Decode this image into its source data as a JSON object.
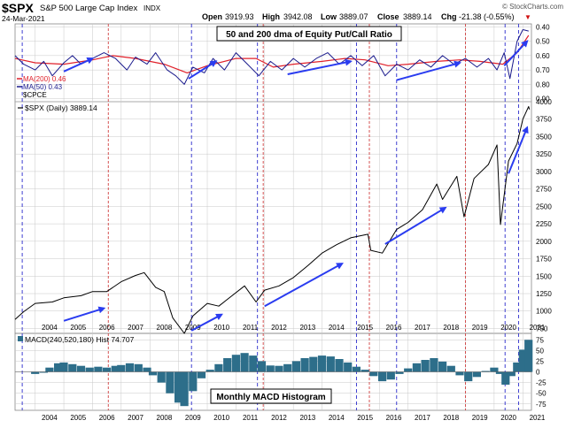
{
  "header": {
    "symbol": "$SPX",
    "name": "S&P 500 Large Cap Index",
    "exchange": "INDX",
    "date": "24-Mar-2021",
    "brand": "© StockCharts.com",
    "ohlc": {
      "open_label": "Open",
      "open": "3919.93",
      "high_label": "High",
      "high": "3942.08",
      "low_label": "Low",
      "low": "3889.07",
      "close_label": "Close",
      "close": "3889.14",
      "chg_label": "Chg",
      "chg": "-21.38 (-0.55%)",
      "down_marker": "▼"
    }
  },
  "colors": {
    "price": "#000000",
    "ma200": "#e0202a",
    "ma50": "#1a1a8c",
    "hist": "#2d6e8a",
    "arrow": "#2a3cf0",
    "vline_blue": "#2a2acc",
    "vline_red": "#d04040",
    "grid": "#c8c8c8"
  },
  "top_panel": {
    "annotation": "50 and 200 dma of Equity Put/Call Ratio",
    "legend": [
      {
        "label": "MA(200) 0.46",
        "color": "#e0202a"
      },
      {
        "label": "MA(50) 0.43",
        "color": "#1a1a8c"
      },
      {
        "label": "$CPCE",
        "color": "#000000"
      }
    ]
  },
  "mid_panel": {
    "legend": "$SPX (Daily) 3889.14"
  },
  "bottom_panel": {
    "legend": "MACD(240,520,180) Hist 74.707",
    "annotation": "Monthly MACD Histogram"
  },
  "chart_data": [
    {
      "type": "line",
      "title": "50 and 200 dma of Equity Put/Call Ratio",
      "series_names": [
        "MA(200)",
        "MA(50)"
      ],
      "x_range": [
        2003.3,
        2021.3
      ],
      "y_inverted": true,
      "y_ticks": [
        0.4,
        0.5,
        0.6,
        0.7,
        0.8,
        0.9
      ],
      "ylim": [
        0.38,
        0.92
      ],
      "ma200": [
        [
          2003.3,
          0.62
        ],
        [
          2004,
          0.65
        ],
        [
          2005,
          0.66
        ],
        [
          2006,
          0.63
        ],
        [
          2006.7,
          0.6
        ],
        [
          2007.5,
          0.62
        ],
        [
          2008.5,
          0.66
        ],
        [
          2009.3,
          0.72
        ],
        [
          2010,
          0.67
        ],
        [
          2011,
          0.62
        ],
        [
          2011.7,
          0.62
        ],
        [
          2012.3,
          0.68
        ],
        [
          2013,
          0.66
        ],
        [
          2014,
          0.64
        ],
        [
          2014.8,
          0.62
        ],
        [
          2015.5,
          0.63
        ],
        [
          2016.3,
          0.67
        ],
        [
          2017,
          0.66
        ],
        [
          2018,
          0.64
        ],
        [
          2018.8,
          0.63
        ],
        [
          2019.5,
          0.64
        ],
        [
          2020.3,
          0.66
        ],
        [
          2020.8,
          0.58
        ],
        [
          2021.2,
          0.46
        ]
      ],
      "ma50": [
        [
          2003.3,
          0.6
        ],
        [
          2003.6,
          0.66
        ],
        [
          2004,
          0.7
        ],
        [
          2004.3,
          0.64
        ],
        [
          2004.6,
          0.74
        ],
        [
          2005,
          0.65
        ],
        [
          2005.3,
          0.6
        ],
        [
          2005.6,
          0.66
        ],
        [
          2006,
          0.62
        ],
        [
          2006.4,
          0.58
        ],
        [
          2006.8,
          0.62
        ],
        [
          2007.2,
          0.7
        ],
        [
          2007.5,
          0.61
        ],
        [
          2007.9,
          0.66
        ],
        [
          2008.2,
          0.58
        ],
        [
          2008.6,
          0.7
        ],
        [
          2008.9,
          0.74
        ],
        [
          2009.2,
          0.8
        ],
        [
          2009.5,
          0.68
        ],
        [
          2009.9,
          0.72
        ],
        [
          2010.2,
          0.62
        ],
        [
          2010.6,
          0.7
        ],
        [
          2011,
          0.58
        ],
        [
          2011.4,
          0.66
        ],
        [
          2011.8,
          0.74
        ],
        [
          2012.2,
          0.64
        ],
        [
          2012.6,
          0.7
        ],
        [
          2013,
          0.62
        ],
        [
          2013.4,
          0.68
        ],
        [
          2013.8,
          0.62
        ],
        [
          2014.2,
          0.58
        ],
        [
          2014.6,
          0.66
        ],
        [
          2015,
          0.6
        ],
        [
          2015.4,
          0.67
        ],
        [
          2015.8,
          0.6
        ],
        [
          2016.2,
          0.74
        ],
        [
          2016.6,
          0.66
        ],
        [
          2017,
          0.7
        ],
        [
          2017.4,
          0.63
        ],
        [
          2017.8,
          0.68
        ],
        [
          2018.2,
          0.6
        ],
        [
          2018.6,
          0.66
        ],
        [
          2019,
          0.62
        ],
        [
          2019.4,
          0.68
        ],
        [
          2019.8,
          0.62
        ],
        [
          2020.1,
          0.7
        ],
        [
          2020.35,
          0.58
        ],
        [
          2020.55,
          0.76
        ],
        [
          2020.8,
          0.5
        ],
        [
          2021,
          0.42
        ],
        [
          2021.2,
          0.43
        ]
      ]
    },
    {
      "type": "line",
      "title": "$SPX (Daily) 3889.14",
      "x_range": [
        2003.3,
        2021.3
      ],
      "y_ticks": [
        750,
        1000,
        1250,
        1500,
        1750,
        2000,
        2250,
        2500,
        2750,
        3000,
        3250,
        3500,
        3750,
        4000
      ],
      "ylim": [
        680,
        4000
      ],
      "values": [
        [
          2003.3,
          880
        ],
        [
          2003.6,
          990
        ],
        [
          2004,
          1110
        ],
        [
          2004.6,
          1130
        ],
        [
          2005,
          1190
        ],
        [
          2005.6,
          1220
        ],
        [
          2006,
          1280
        ],
        [
          2006.5,
          1280
        ],
        [
          2007,
          1420
        ],
        [
          2007.5,
          1510
        ],
        [
          2007.8,
          1550
        ],
        [
          2008.2,
          1340
        ],
        [
          2008.5,
          1280
        ],
        [
          2008.8,
          900
        ],
        [
          2009.2,
          680
        ],
        [
          2009.5,
          930
        ],
        [
          2010,
          1110
        ],
        [
          2010.4,
          1070
        ],
        [
          2010.8,
          1200
        ],
        [
          2011.3,
          1360
        ],
        [
          2011.7,
          1130
        ],
        [
          2012,
          1300
        ],
        [
          2012.5,
          1360
        ],
        [
          2013,
          1480
        ],
        [
          2013.5,
          1650
        ],
        [
          2014,
          1830
        ],
        [
          2014.5,
          1950
        ],
        [
          2015,
          2050
        ],
        [
          2015.6,
          2100
        ],
        [
          2015.7,
          1870
        ],
        [
          2016.1,
          1830
        ],
        [
          2016.6,
          2170
        ],
        [
          2017,
          2270
        ],
        [
          2017.5,
          2450
        ],
        [
          2018,
          2820
        ],
        [
          2018.2,
          2600
        ],
        [
          2018.7,
          2930
        ],
        [
          2018.95,
          2350
        ],
        [
          2019.3,
          2900
        ],
        [
          2019.8,
          3100
        ],
        [
          2020.1,
          3380
        ],
        [
          2020.22,
          2240
        ],
        [
          2020.5,
          3150
        ],
        [
          2020.8,
          3400
        ],
        [
          2021,
          3750
        ],
        [
          2021.2,
          3930
        ],
        [
          2021.23,
          3889
        ]
      ]
    },
    {
      "type": "bar",
      "title": "MACD(240,520,180) Hist 74.707",
      "x_range": [
        2003.3,
        2021.3
      ],
      "y_ticks": [
        -75,
        -50,
        -25,
        0,
        25,
        50,
        75
      ],
      "ylim": [
        -90,
        90
      ],
      "values": [
        [
          2004,
          -5
        ],
        [
          2004.3,
          -2
        ],
        [
          2004.5,
          10
        ],
        [
          2004.8,
          20
        ],
        [
          2005,
          22
        ],
        [
          2005.3,
          18
        ],
        [
          2005.6,
          14
        ],
        [
          2005.9,
          10
        ],
        [
          2006.2,
          12
        ],
        [
          2006.5,
          10
        ],
        [
          2006.8,
          14
        ],
        [
          2007,
          16
        ],
        [
          2007.3,
          20
        ],
        [
          2007.6,
          18
        ],
        [
          2007.9,
          10
        ],
        [
          2008.1,
          -8
        ],
        [
          2008.4,
          -25
        ],
        [
          2008.7,
          -50
        ],
        [
          2009,
          -72
        ],
        [
          2009.2,
          -80
        ],
        [
          2009.5,
          -45
        ],
        [
          2009.8,
          -15
        ],
        [
          2010.1,
          5
        ],
        [
          2010.4,
          18
        ],
        [
          2010.7,
          32
        ],
        [
          2011,
          40
        ],
        [
          2011.3,
          44
        ],
        [
          2011.6,
          38
        ],
        [
          2011.9,
          25
        ],
        [
          2012.2,
          15
        ],
        [
          2012.5,
          14
        ],
        [
          2012.8,
          18
        ],
        [
          2013.1,
          25
        ],
        [
          2013.4,
          32
        ],
        [
          2013.7,
          35
        ],
        [
          2014,
          38
        ],
        [
          2014.3,
          36
        ],
        [
          2014.6,
          30
        ],
        [
          2014.9,
          22
        ],
        [
          2015.2,
          12
        ],
        [
          2015.5,
          5
        ],
        [
          2015.8,
          -10
        ],
        [
          2016.1,
          -22
        ],
        [
          2016.4,
          -18
        ],
        [
          2016.7,
          -5
        ],
        [
          2017,
          8
        ],
        [
          2017.3,
          20
        ],
        [
          2017.6,
          28
        ],
        [
          2017.9,
          32
        ],
        [
          2018.2,
          24
        ],
        [
          2018.5,
          14
        ],
        [
          2018.8,
          -8
        ],
        [
          2019.1,
          -22
        ],
        [
          2019.4,
          -12
        ],
        [
          2019.7,
          2
        ],
        [
          2020,
          10
        ],
        [
          2020.2,
          -5
        ],
        [
          2020.4,
          -30
        ],
        [
          2020.6,
          -10
        ],
        [
          2020.8,
          22
        ],
        [
          2021,
          52
        ],
        [
          2021.2,
          75
        ]
      ]
    }
  ],
  "x_axis": {
    "year_labels": [
      "2004",
      "2005",
      "2006",
      "2007",
      "2008",
      "2009",
      "2010",
      "2011",
      "2012",
      "2013",
      "2014",
      "2015",
      "2016",
      "2017",
      "2018",
      "2019",
      "2020",
      "2021"
    ]
  },
  "markers": {
    "blue_vlines": [
      2003.55,
      2009.45,
      2011.75,
      2015.2,
      2016.6,
      2020.38,
      2020.85
    ],
    "red_vlines": [
      2006.55,
      2011.95,
      2015.65,
      2019.0
    ]
  },
  "arrows": [
    {
      "panel": "top",
      "from": [
        2005.0,
        0.71
      ],
      "to": [
        2006.0,
        0.62
      ]
    },
    {
      "panel": "top",
      "from": [
        2009.35,
        0.76
      ],
      "to": [
        2010.3,
        0.64
      ]
    },
    {
      "panel": "top",
      "from": [
        2012.8,
        0.73
      ],
      "to": [
        2015.0,
        0.64
      ]
    },
    {
      "panel": "top",
      "from": [
        2016.6,
        0.77
      ],
      "to": [
        2018.8,
        0.65
      ]
    },
    {
      "panel": "top",
      "from": [
        2020.35,
        0.67
      ],
      "to": [
        2021.15,
        0.5
      ]
    },
    {
      "panel": "mid",
      "from": [
        2005.0,
        860
      ],
      "to": [
        2006.4,
        1040
      ]
    },
    {
      "panel": "mid",
      "from": [
        2009.45,
        720
      ],
      "to": [
        2010.5,
        950
      ]
    },
    {
      "panel": "mid",
      "from": [
        2012.0,
        1070
      ],
      "to": [
        2014.7,
        1680
      ]
    },
    {
      "panel": "mid",
      "from": [
        2016.2,
        1960
      ],
      "to": [
        2018.3,
        2480
      ]
    },
    {
      "panel": "mid",
      "from": [
        2020.5,
        2970
      ],
      "to": [
        2021.15,
        3630
      ]
    }
  ]
}
